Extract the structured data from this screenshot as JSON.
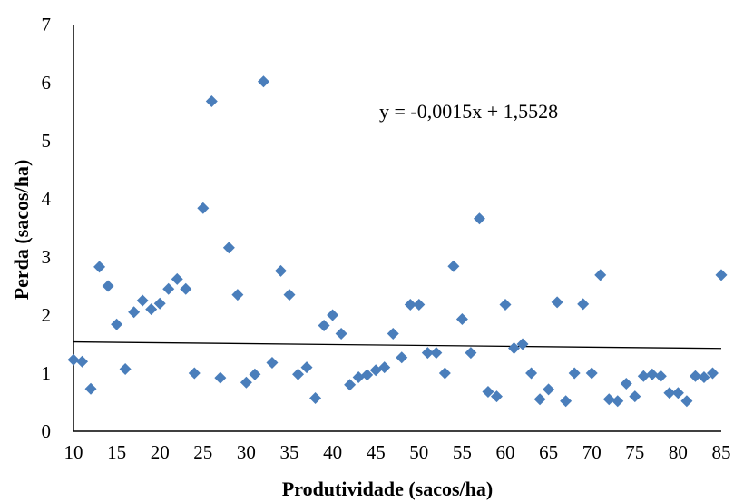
{
  "chart_data": {
    "type": "scatter",
    "title": "",
    "xlabel": "Produtividade  (sacos/ha)",
    "ylabel": "Perda  (sacos/ha)",
    "xlim": [
      10,
      85
    ],
    "ylim": [
      0,
      7
    ],
    "xticks": [
      10,
      15,
      20,
      25,
      30,
      35,
      40,
      45,
      50,
      55,
      60,
      65,
      70,
      75,
      80,
      85
    ],
    "yticks": [
      0,
      1,
      2,
      3,
      4,
      5,
      6,
      7
    ],
    "grid": false,
    "marker_color": "#4a7ebb",
    "trendline": {
      "equation_text": "y = -0,0015x + 1,5528",
      "slope": -0.0015,
      "intercept": 1.5528
    },
    "series": [
      {
        "points": [
          [
            10,
            1.23
          ],
          [
            11,
            1.2
          ],
          [
            12,
            0.73
          ],
          [
            13,
            2.83
          ],
          [
            14,
            2.5
          ],
          [
            15,
            1.84
          ],
          [
            16,
            1.07
          ],
          [
            17,
            2.05
          ],
          [
            18,
            2.25
          ],
          [
            19,
            2.1
          ],
          [
            20,
            2.2
          ],
          [
            21,
            2.45
          ],
          [
            22,
            2.62
          ],
          [
            23,
            2.45
          ],
          [
            24,
            1.0
          ],
          [
            25,
            3.84
          ],
          [
            26,
            5.68
          ],
          [
            27,
            0.92
          ],
          [
            28,
            3.16
          ],
          [
            29,
            2.35
          ],
          [
            30,
            0.84
          ],
          [
            31,
            0.98
          ],
          [
            32,
            6.02
          ],
          [
            33,
            1.18
          ],
          [
            34,
            2.76
          ],
          [
            35,
            2.35
          ],
          [
            36,
            0.98
          ],
          [
            37,
            1.1
          ],
          [
            38,
            0.57
          ],
          [
            39,
            1.82
          ],
          [
            40,
            2.0
          ],
          [
            41,
            1.68
          ],
          [
            42,
            0.8
          ],
          [
            43,
            0.93
          ],
          [
            44,
            0.97
          ],
          [
            45,
            1.05
          ],
          [
            46,
            1.1
          ],
          [
            47,
            1.68
          ],
          [
            48,
            1.27
          ],
          [
            49,
            2.18
          ],
          [
            50,
            2.18
          ],
          [
            51,
            1.35
          ],
          [
            52,
            1.35
          ],
          [
            53,
            1.0
          ],
          [
            54,
            2.84
          ],
          [
            55,
            1.93
          ],
          [
            56,
            1.35
          ],
          [
            57,
            3.66
          ],
          [
            58,
            0.68
          ],
          [
            59,
            0.6
          ],
          [
            60,
            2.18
          ],
          [
            61,
            1.43
          ],
          [
            62,
            1.5
          ],
          [
            63,
            1.0
          ],
          [
            64,
            0.55
          ],
          [
            65,
            0.72
          ],
          [
            66,
            2.22
          ],
          [
            67,
            0.52
          ],
          [
            68,
            1.0
          ],
          [
            69,
            2.19
          ],
          [
            70,
            1.0
          ],
          [
            71,
            2.69
          ],
          [
            72,
            0.55
          ],
          [
            73,
            0.52
          ],
          [
            74,
            0.82
          ],
          [
            75,
            0.6
          ],
          [
            76,
            0.95
          ],
          [
            77,
            0.98
          ],
          [
            78,
            0.95
          ],
          [
            79,
            0.66
          ],
          [
            80,
            0.66
          ],
          [
            81,
            0.52
          ],
          [
            82,
            0.95
          ],
          [
            83,
            0.93
          ],
          [
            84,
            1.0
          ],
          [
            85,
            2.69
          ]
        ]
      }
    ]
  }
}
